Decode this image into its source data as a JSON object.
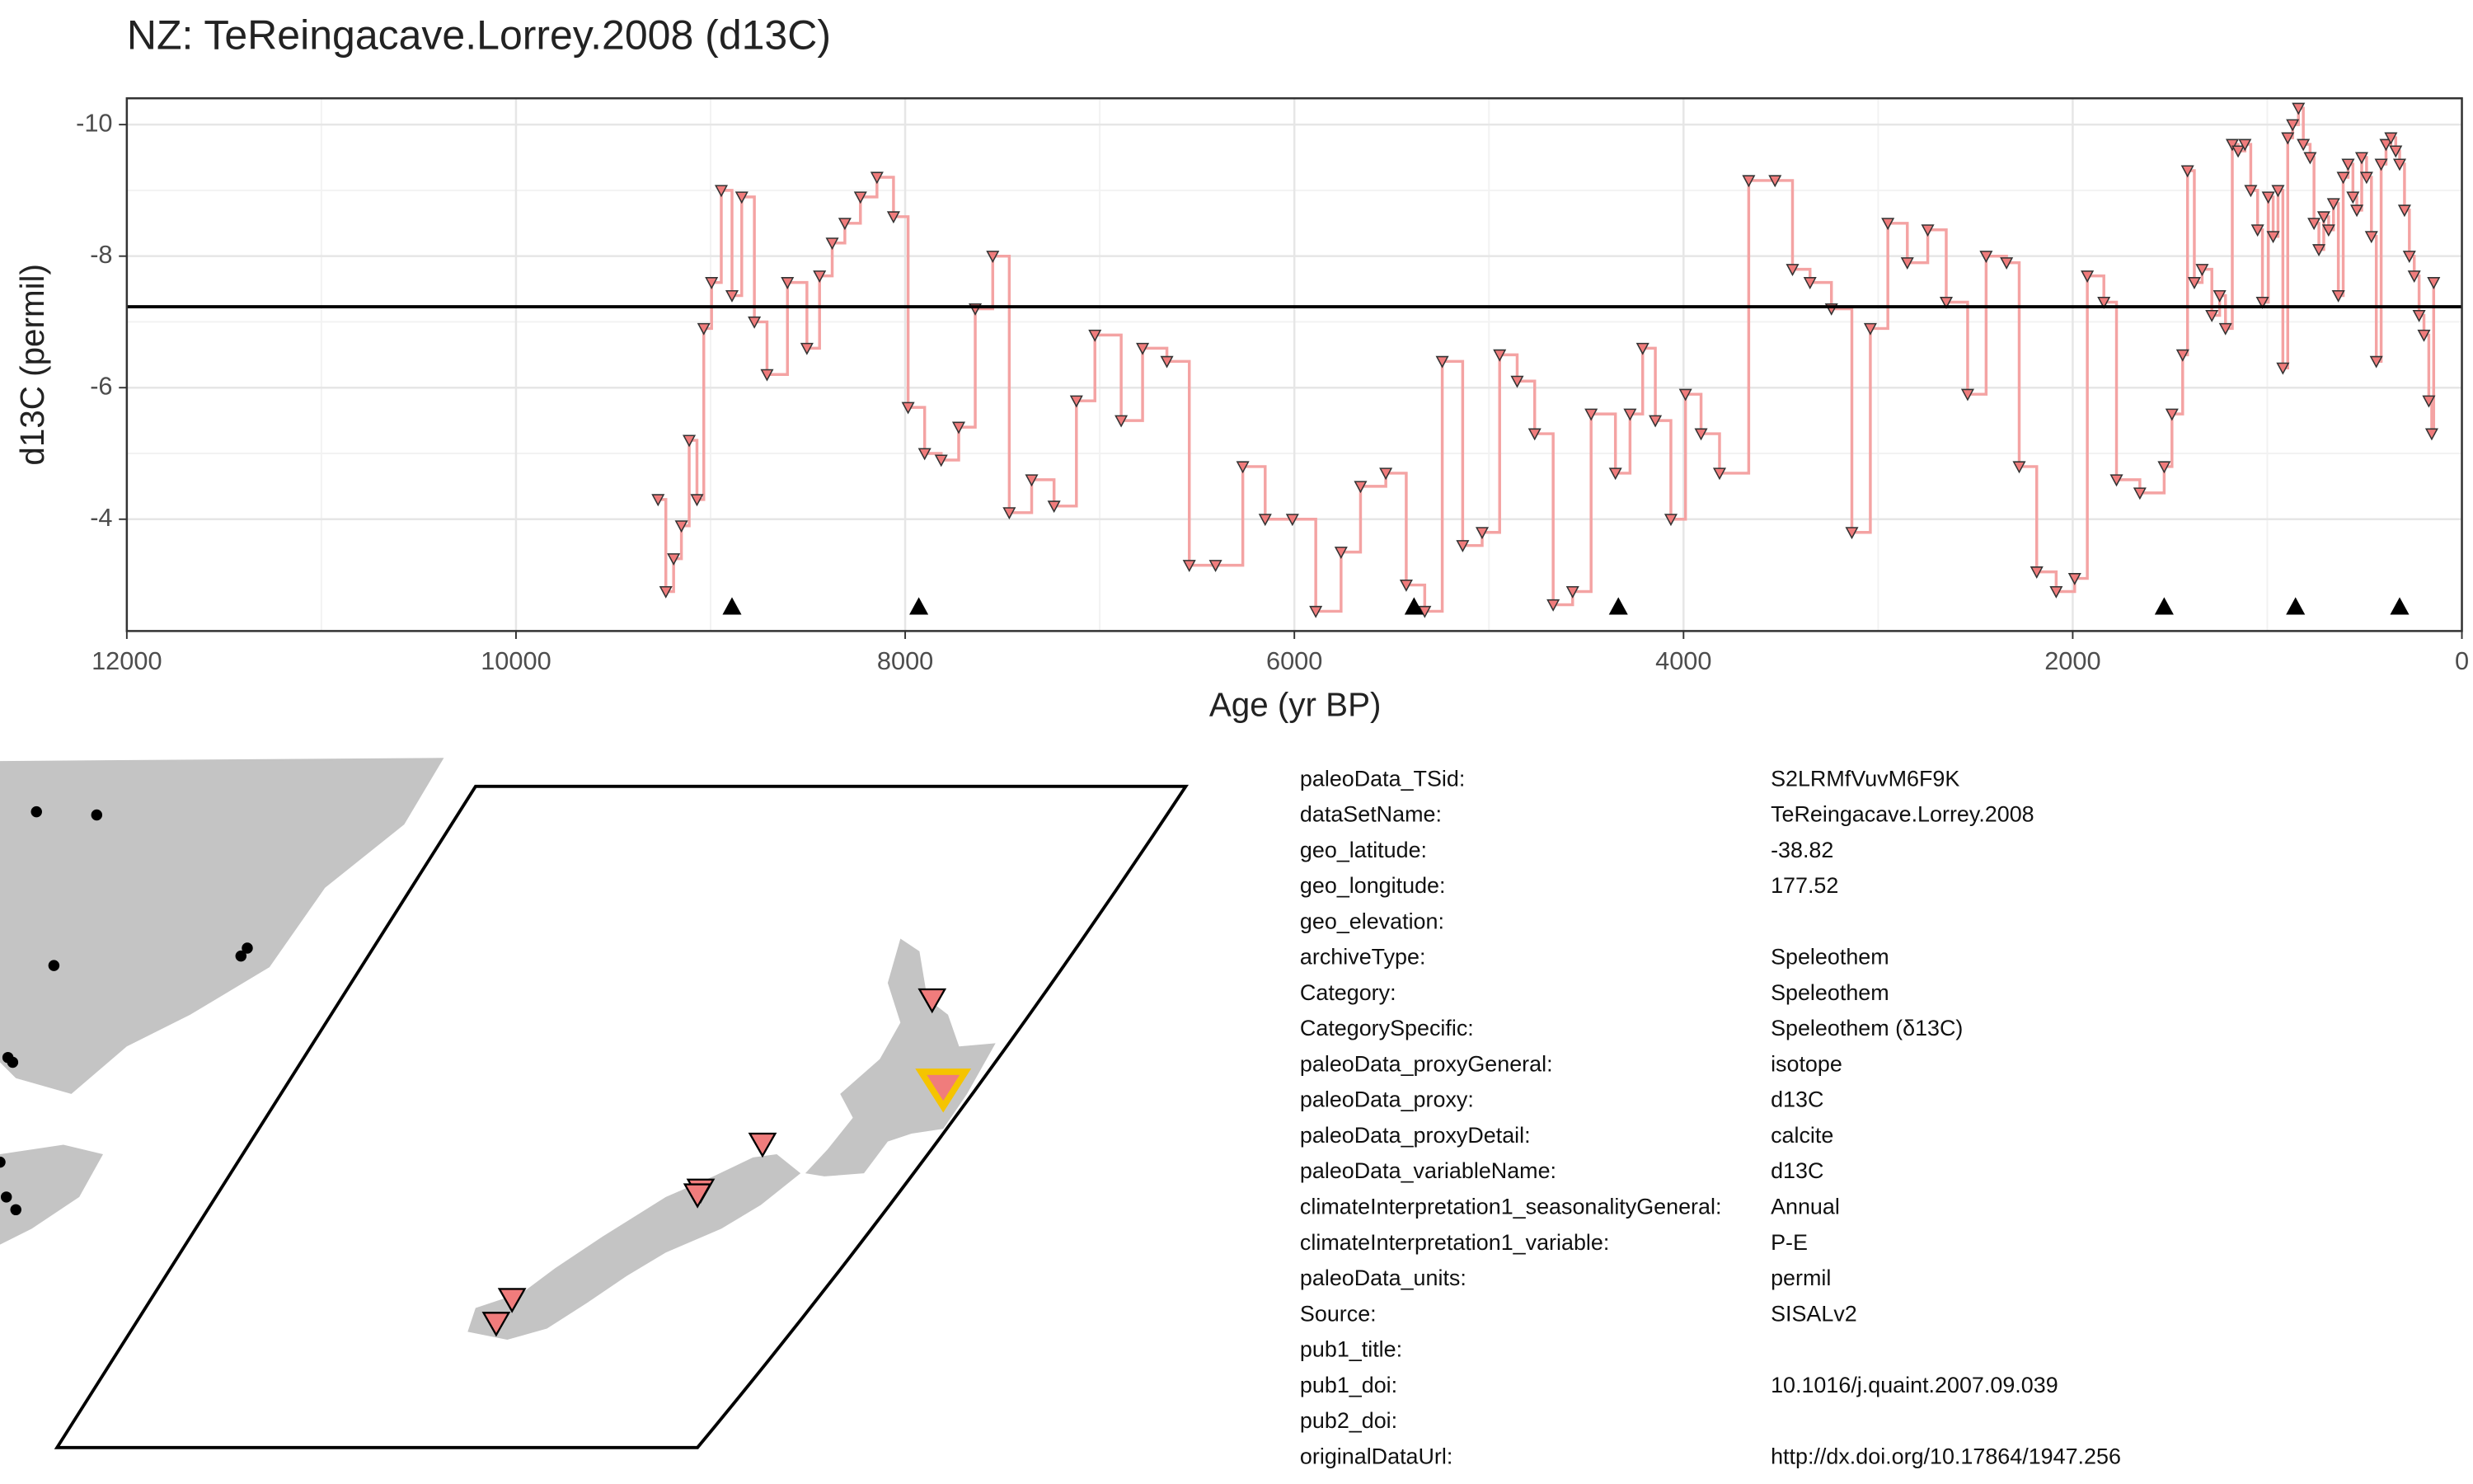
{
  "chart_data": {
    "type": "step",
    "title": "NZ: TeReingacave.Lorrey.2008 (d13C)",
    "x_label": "Age (yr BP)",
    "y_label": "d13C (permil)",
    "xlim": [
      12000,
      0
    ],
    "ylim": [
      -2.3,
      -10.4
    ],
    "xticks": [
      12000,
      10000,
      8000,
      6000,
      4000,
      2000,
      0
    ],
    "yticks": [
      -10,
      -8,
      -6,
      -4
    ],
    "grid": true,
    "color": "#f4a3a3",
    "marker_color": "#f07c7c",
    "mean": -7.23,
    "hiatus_ages": [
      8890,
      7930,
      5385,
      4335,
      1530,
      855,
      320
    ],
    "hiatus_level": -2.67,
    "x": [
      9270,
      9230,
      9190,
      9150,
      9110,
      9070,
      9035,
      8995,
      8945,
      8890,
      8840,
      8775,
      8710,
      8605,
      8505,
      8440,
      8375,
      8310,
      8230,
      8145,
      8060,
      7985,
      7900,
      7815,
      7725,
      7640,
      7550,
      7465,
      7350,
      7235,
      7120,
      7025,
      6890,
      6780,
      6655,
      6540,
      6405,
      6265,
      6150,
      6010,
      5890,
      5760,
      5660,
      5530,
      5425,
      5330,
      5240,
      5135,
      5035,
      4945,
      4855,
      4765,
      4670,
      4570,
      4475,
      4350,
      4275,
      4210,
      4145,
      4065,
      3990,
      3910,
      3815,
      3665,
      3530,
      3440,
      3350,
      3240,
      3135,
      3040,
      2950,
      2850,
      2745,
      2650,
      2540,
      2445,
      2340,
      2275,
      2185,
      2085,
      1990,
      1925,
      1840,
      1775,
      1655,
      1530,
      1490,
      1435,
      1410,
      1375,
      1335,
      1285,
      1245,
      1215,
      1180,
      1150,
      1115,
      1085,
      1050,
      1025,
      995,
      970,
      945,
      920,
      895,
      870,
      840,
      815,
      780,
      760,
      735,
      710,
      685,
      660,
      635,
      610,
      585,
      560,
      540,
      515,
      490,
      465,
      440,
      415,
      390,
      365,
      340,
      320,
      295,
      270,
      245,
      220,
      195,
      170,
      155,
      145
    ],
    "values": [
      -4.3,
      -2.9,
      -3.4,
      -3.9,
      -5.2,
      -4.3,
      -6.9,
      -7.6,
      -9.0,
      -7.4,
      -8.9,
      -7.0,
      -6.2,
      -7.6,
      -6.6,
      -7.7,
      -8.2,
      -8.5,
      -8.9,
      -9.2,
      -8.6,
      -5.7,
      -5.0,
      -4.9,
      -5.4,
      -7.2,
      -8.0,
      -4.1,
      -4.6,
      -4.2,
      -5.8,
      -6.8,
      -5.5,
      -6.6,
      -6.4,
      -3.3,
      -3.3,
      -4.8,
      -4.0,
      -4.0,
      -2.6,
      -3.5,
      -4.5,
      -4.7,
      -3.0,
      -2.6,
      -6.4,
      -3.6,
      -3.8,
      -6.5,
      -6.1,
      -5.3,
      -2.7,
      -2.9,
      -5.6,
      -4.7,
      -5.6,
      -6.6,
      -5.5,
      -4.0,
      -5.9,
      -5.3,
      -4.7,
      -9.15,
      -9.15,
      -7.8,
      -7.6,
      -7.2,
      -3.8,
      -6.9,
      -8.5,
      -7.9,
      -8.4,
      -7.3,
      -5.9,
      -8.0,
      -7.9,
      -4.8,
      -3.2,
      -2.9,
      -3.1,
      -7.7,
      -7.3,
      -4.6,
      -4.4,
      -4.8,
      -5.6,
      -6.5,
      -9.3,
      -7.6,
      -7.8,
      -7.1,
      -7.4,
      -6.9,
      -9.7,
      -9.6,
      -9.7,
      -9.0,
      -8.4,
      -7.3,
      -8.9,
      -8.3,
      -9.0,
      -6.3,
      -9.8,
      -10.0,
      -10.25,
      -9.7,
      -9.5,
      -8.5,
      -8.1,
      -8.6,
      -8.4,
      -8.8,
      -7.4,
      -9.2,
      -9.4,
      -8.9,
      -8.7,
      -9.5,
      -9.2,
      -8.3,
      -6.4,
      -9.4,
      -9.7,
      -9.8,
      -9.6,
      -9.4,
      -8.7,
      -8.0,
      -7.7,
      -7.1,
      -6.8,
      -5.8,
      -5.3,
      -7.6
    ]
  },
  "table": {
    "rows": [
      [
        "paleoData_TSid:",
        "S2LRMfVuvM6F9K"
      ],
      [
        "dataSetName:",
        "TeReingacave.Lorrey.2008"
      ],
      [
        "geo_latitude:",
        "-38.82"
      ],
      [
        "geo_longitude:",
        "177.52"
      ],
      [
        "geo_elevation:"
      ],
      [
        "archiveType:",
        "Speleothem"
      ],
      [
        "Category:",
        "Speleothem"
      ],
      [
        "CategorySpecific:",
        "Speleothem (δ13C)"
      ],
      [
        "paleoData_proxyGeneral:",
        "isotope"
      ],
      [
        "paleoData_proxy:",
        "d13C"
      ],
      [
        "paleoData_proxyDetail:",
        "calcite"
      ],
      [
        "paleoData_variableName:",
        "d13C"
      ],
      [
        "climateInterpretation1_seasonalityGeneral:",
        "Annual"
      ],
      [
        "climateInterpretation1_variable:",
        "P-E"
      ],
      [
        "paleoData_units:",
        "permil"
      ],
      [
        "Source:",
        "SISALv2"
      ],
      [
        "pub1_title:"
      ],
      [
        "pub1_doi:",
        "10.1016/j.quaint.2007.09.039"
      ],
      [
        "pub2_doi:"
      ],
      [
        "originalDataUrl:",
        "http://dx.doi.org/10.17864/1947.256"
      ]
    ]
  }
}
